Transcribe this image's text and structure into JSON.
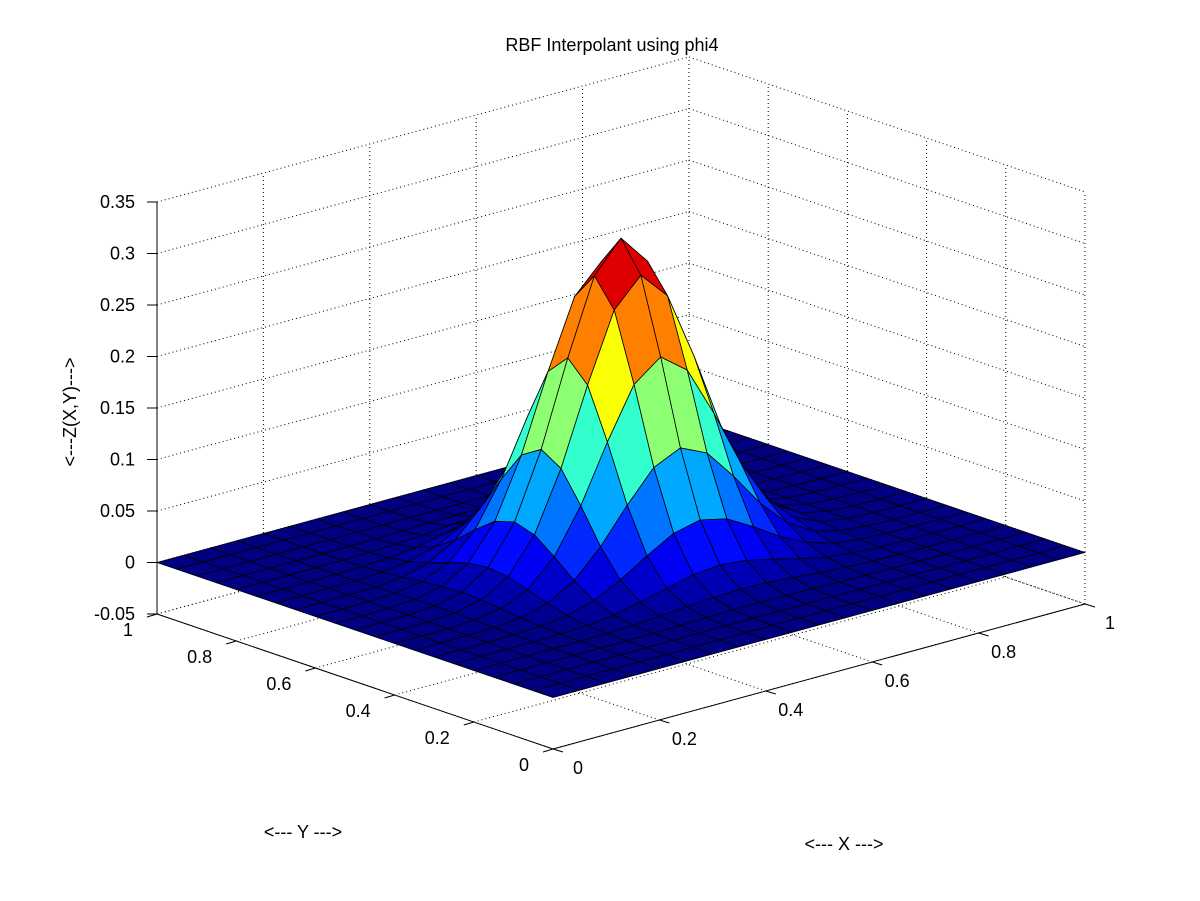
{
  "chart_data": {
    "type": "surface",
    "title": "RBF Interpolant using phi4",
    "xlabel": "<--- X --->",
    "ylabel": "<--- Y --->",
    "zlabel": "<---Z(X,Y)--->",
    "xlim": [
      0,
      1
    ],
    "ylim": [
      0,
      1
    ],
    "zlim": [
      -0.05,
      0.35
    ],
    "x_ticks": [
      "0",
      "0.2",
      "0.4",
      "0.6",
      "0.8",
      "1"
    ],
    "y_ticks": [
      "0",
      "0.2",
      "0.4",
      "0.6",
      "0.8",
      "1"
    ],
    "z_ticks": [
      "-0.05",
      "0",
      "0.05",
      "0.1",
      "0.15",
      "0.2",
      "0.25",
      "0.3",
      "0.35"
    ],
    "grid": true,
    "colormap": "jet",
    "grid_size": 21,
    "peak": {
      "x": 0.5,
      "y": 0.5,
      "z": 0.31
    },
    "surface_function": "0.31*exp(-((x-0.5)^2+(y-0.5)^2)/0.025)"
  }
}
